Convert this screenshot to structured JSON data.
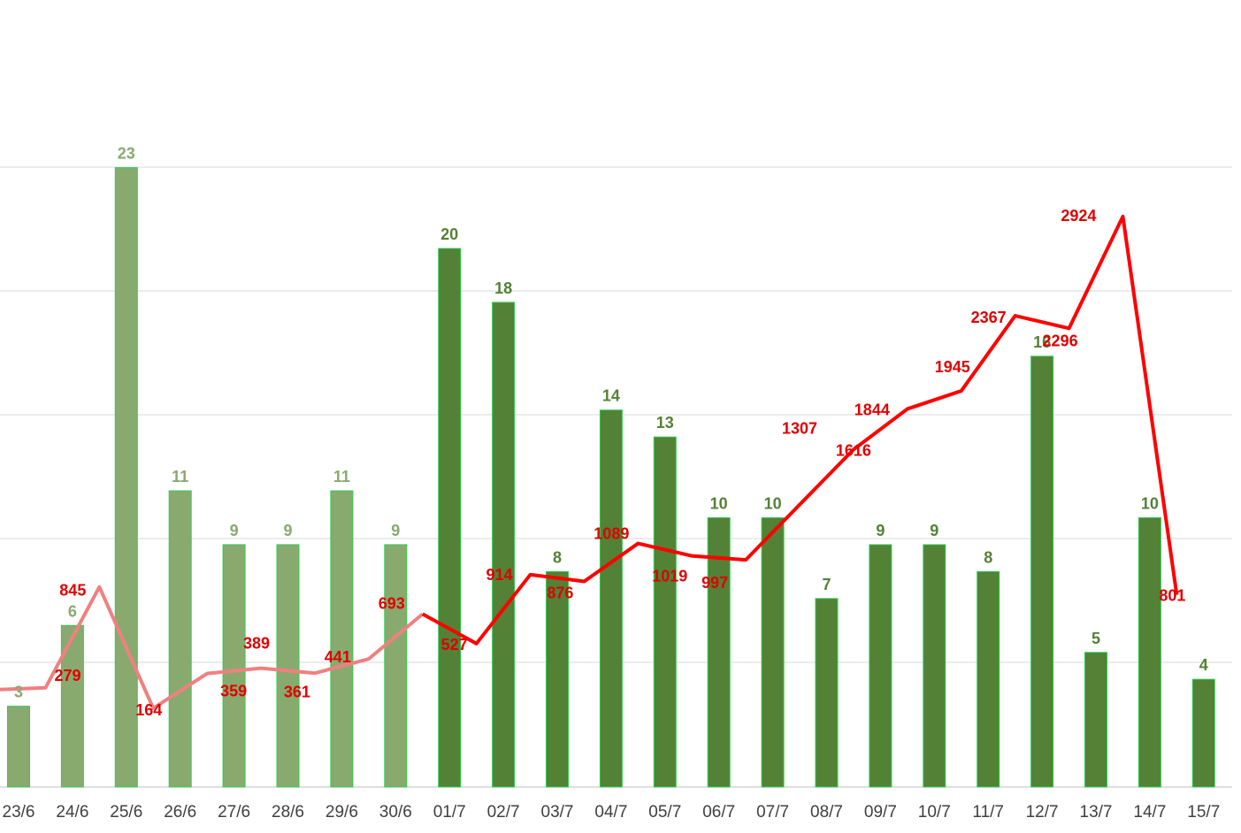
{
  "chart_data": {
    "type": "bar",
    "title": "",
    "xlabel": "",
    "ylabel": "",
    "categories": [
      "23/6",
      "24/6",
      "25/6",
      "26/6",
      "27/6",
      "28/6",
      "29/6",
      "30/6",
      "01/7",
      "02/7",
      "03/7",
      "04/7",
      "05/7",
      "06/7",
      "07/7",
      "08/7",
      "09/7",
      "10/7",
      "11/7",
      "12/7",
      "13/7",
      "14/7",
      "15/7"
    ],
    "ylim": [
      0,
      25
    ],
    "grid": true,
    "highlighted_from_index": 8,
    "series": [
      {
        "type": "bar",
        "values": [
          3,
          6,
          23,
          11,
          9,
          9,
          11,
          9,
          20,
          18,
          8,
          14,
          13,
          10,
          10,
          7,
          9,
          9,
          8,
          16,
          5,
          10,
          4
        ],
        "color_faded": "#89aa6e",
        "color": "#538135",
        "border": "#2ecc52"
      },
      {
        "type": "line",
        "values": [
          279,
          845,
          164,
          359,
          389,
          361,
          441,
          693,
          527,
          914,
          876,
          1089,
          1019,
          997,
          1307,
          1616,
          1844,
          1945,
          2367,
          2296,
          2924,
          801
        ],
        "positions": [
          0.5,
          1.5,
          2.5,
          3.5,
          4.5,
          5.5,
          6.5,
          7.5,
          8.5,
          9.5,
          10.5,
          11.5,
          12.5,
          13.5,
          14.5,
          15.5,
          16.5,
          17.5,
          18.5,
          19.5,
          20.5,
          21.5
        ],
        "ylim": [
          0,
          3200
        ],
        "color_faded": "#f08080",
        "color": "#ff0000",
        "label_color": "#e00000"
      }
    ]
  }
}
